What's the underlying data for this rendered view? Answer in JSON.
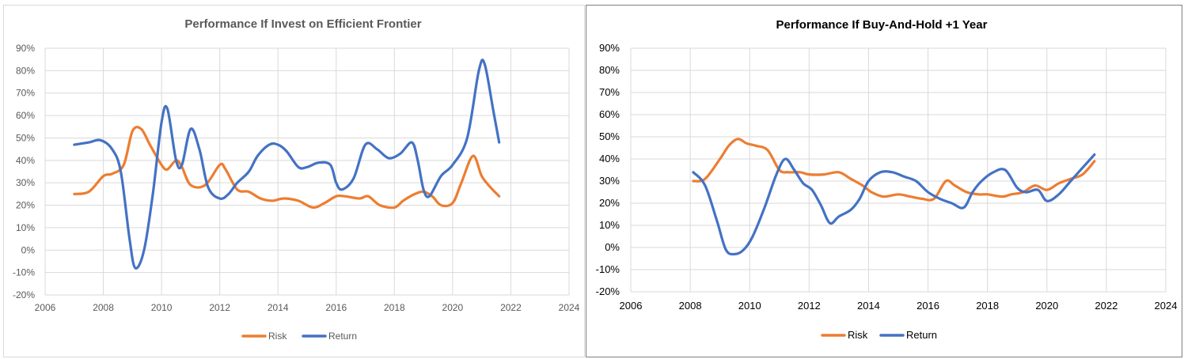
{
  "chart_data": [
    {
      "type": "line",
      "title": "Performance If Invest on Efficient Frontier",
      "xlabel": "",
      "ylabel": "",
      "xlim": [
        2006,
        2024
      ],
      "ylim": [
        -20,
        90
      ],
      "x_ticks": [
        "2006",
        "2008",
        "2010",
        "2012",
        "2014",
        "2016",
        "2018",
        "2020",
        "2022",
        "2024"
      ],
      "y_ticks": [
        "-20%",
        "-10%",
        "0%",
        "10%",
        "20%",
        "30%",
        "40%",
        "50%",
        "60%",
        "70%",
        "80%",
        "90%"
      ],
      "grid": true,
      "legend": "bottom",
      "series": [
        {
          "name": "Risk",
          "color": "#ED7D31",
          "x": [
            2007.0,
            2007.5,
            2008.0,
            2008.3,
            2008.7,
            2009.0,
            2009.3,
            2009.6,
            2010.0,
            2010.2,
            2010.5,
            2010.7,
            2011.0,
            2011.5,
            2012.0,
            2012.2,
            2012.6,
            2013.0,
            2013.4,
            2013.8,
            2014.2,
            2014.7,
            2015.2,
            2015.6,
            2016.0,
            2016.3,
            2016.8,
            2017.1,
            2017.5,
            2018.0,
            2018.3,
            2018.7,
            2019.0,
            2019.3,
            2019.6,
            2020.0,
            2020.3,
            2020.7,
            2021.0,
            2021.3,
            2021.6
          ],
          "y": [
            25,
            26,
            33,
            34,
            38,
            53,
            54,
            47,
            38,
            36,
            40,
            37,
            29,
            29,
            38,
            36,
            27,
            26,
            23,
            22,
            23,
            22,
            19,
            21,
            24,
            24,
            23,
            24,
            20,
            19,
            22,
            25,
            26,
            24,
            20,
            21,
            30,
            42,
            33,
            28,
            24
          ]
        },
        {
          "name": "Return",
          "color": "#4472C4",
          "x": [
            2007.0,
            2007.5,
            2007.9,
            2008.3,
            2008.6,
            2008.9,
            2009.1,
            2009.4,
            2009.7,
            2010.0,
            2010.2,
            2010.5,
            2010.7,
            2011.0,
            2011.3,
            2011.6,
            2012.0,
            2012.3,
            2012.6,
            2013.0,
            2013.3,
            2013.7,
            2014.0,
            2014.3,
            2014.7,
            2015.0,
            2015.4,
            2015.8,
            2016.0,
            2016.2,
            2016.6,
            2017.0,
            2017.4,
            2017.8,
            2018.2,
            2018.6,
            2018.8,
            2019.0,
            2019.2,
            2019.6,
            2020.0,
            2020.5,
            2020.9,
            2021.1,
            2021.4,
            2021.6
          ],
          "y": [
            47,
            48,
            49,
            45,
            35,
            5,
            -8,
            0,
            25,
            57,
            63,
            40,
            38,
            54,
            45,
            28,
            23,
            25,
            30,
            35,
            42,
            47,
            47,
            44,
            37,
            37,
            39,
            38,
            30,
            27,
            32,
            47,
            45,
            41,
            43,
            48,
            40,
            27,
            24,
            33,
            38,
            50,
            80,
            83,
            62,
            48
          ]
        }
      ]
    },
    {
      "type": "line",
      "title": "Performance If Buy-And-Hold +1 Year",
      "xlabel": "",
      "ylabel": "",
      "xlim": [
        2006,
        2024
      ],
      "ylim": [
        -20,
        90
      ],
      "x_ticks": [
        "2006",
        "2008",
        "2010",
        "2012",
        "2014",
        "2016",
        "2018",
        "2020",
        "2022",
        "2024"
      ],
      "y_ticks": [
        "-20%",
        "-10%",
        "0%",
        "10%",
        "20%",
        "30%",
        "40%",
        "50%",
        "60%",
        "70%",
        "80%",
        "90%"
      ],
      "grid": true,
      "legend": "bottom",
      "series": [
        {
          "name": "Risk",
          "color": "#ED7D31",
          "x": [
            2008.1,
            2008.5,
            2009.0,
            2009.3,
            2009.6,
            2009.9,
            2010.2,
            2010.6,
            2011.0,
            2011.3,
            2011.7,
            2012.0,
            2012.5,
            2013.0,
            2013.4,
            2013.8,
            2014.1,
            2014.5,
            2015.0,
            2015.4,
            2015.8,
            2016.2,
            2016.6,
            2016.9,
            2017.3,
            2017.7,
            2018.0,
            2018.5,
            2018.8,
            2019.2,
            2019.6,
            2020.0,
            2020.4,
            2020.8,
            2021.2,
            2021.6
          ],
          "y": [
            30,
            31,
            40,
            46,
            49,
            47,
            46,
            44,
            35,
            34,
            34,
            33,
            33,
            34,
            31,
            28,
            25,
            23,
            24,
            23,
            22,
            22,
            30,
            28,
            25,
            24,
            24,
            23,
            24,
            25,
            28,
            26,
            29,
            31,
            33,
            39
          ]
        },
        {
          "name": "Return",
          "color": "#4472C4",
          "x": [
            2008.1,
            2008.5,
            2008.9,
            2009.2,
            2009.5,
            2009.8,
            2010.1,
            2010.5,
            2010.9,
            2011.2,
            2011.5,
            2011.8,
            2012.1,
            2012.4,
            2012.7,
            2013.0,
            2013.4,
            2013.7,
            2014.0,
            2014.4,
            2014.8,
            2015.2,
            2015.6,
            2016.0,
            2016.4,
            2016.8,
            2017.2,
            2017.5,
            2017.8,
            2018.2,
            2018.6,
            2019.0,
            2019.3,
            2019.7,
            2020.0,
            2020.4,
            2020.8,
            2021.2,
            2021.6
          ],
          "y": [
            34,
            28,
            12,
            -1,
            -3,
            -1,
            5,
            18,
            33,
            40,
            35,
            29,
            26,
            19,
            11,
            14,
            17,
            22,
            30,
            34,
            34,
            32,
            30,
            25,
            22,
            20,
            18,
            25,
            30,
            34,
            35,
            27,
            25,
            26,
            21,
            24,
            30,
            36,
            42
          ]
        }
      ]
    }
  ]
}
